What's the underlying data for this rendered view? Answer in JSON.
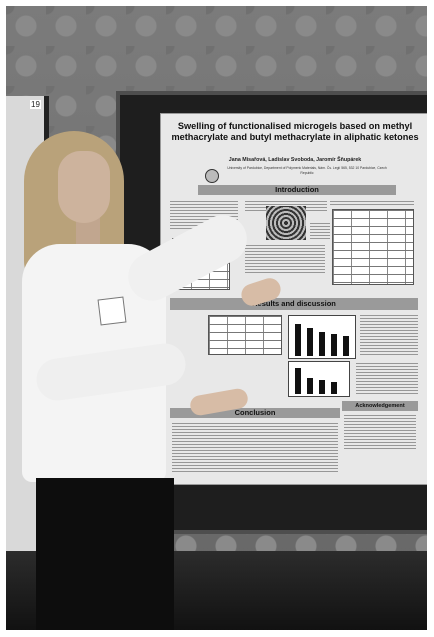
{
  "poster": {
    "title": "Swelling of functionalised microgels based on methyl methacrylate and butyl methacrylate in aliphatic ketones",
    "authors": "Jana Misařová, Ladislav Svoboda, Jaromír Šňupárek",
    "affiliation": "University of Pardubice, Department of Polymeric Materials, Nám. Čs. Legií 565, 532 10 Pardubice, Czech Republic",
    "section_introduction": "Introduction",
    "section_results": "Results and discussion",
    "section_conclusion": "Conclusion",
    "section_acknowledgement": "Acknowledgement"
  },
  "board_tag": "19"
}
